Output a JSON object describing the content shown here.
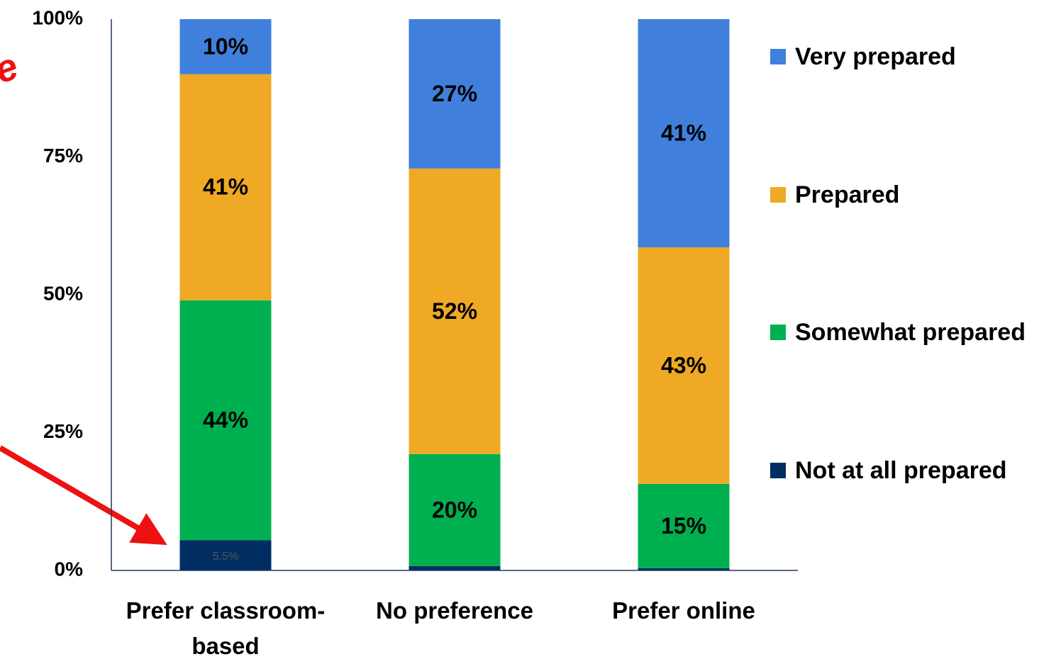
{
  "chart_data": {
    "type": "stacked_bar",
    "annotation": "e",
    "categories": [
      "Prefer classroom-based",
      "No preference",
      "Prefer online"
    ],
    "series": [
      {
        "name": "Not at all prepared",
        "color": "#002e63",
        "values": [
          5.5,
          0.8,
          0.4
        ],
        "value_labels": [
          "5.5%",
          null,
          null
        ]
      },
      {
        "name": "Somewhat prepared",
        "color": "#00b050",
        "values": [
          43.5,
          20.3,
          15.3
        ],
        "value_labels": [
          "44%",
          "20%",
          "15%"
        ]
      },
      {
        "name": "Prepared",
        "color": "#efa924",
        "values": [
          41,
          51.8,
          42.9
        ],
        "value_labels": [
          "41%",
          "52%",
          "43%"
        ]
      },
      {
        "name": "Very prepared",
        "color": "#4080dc",
        "values": [
          10,
          27.1,
          41.4
        ],
        "value_labels": [
          "10%",
          "27%",
          "41%"
        ]
      }
    ],
    "ylim": [
      0,
      100
    ],
    "yticks": [
      {
        "value": 0,
        "label": "0%"
      },
      {
        "value": 25,
        "label": "25%"
      },
      {
        "value": 50,
        "label": "50%"
      },
      {
        "value": 75,
        "label": "75%"
      },
      {
        "value": 100,
        "label": "100%"
      }
    ],
    "legend": "right"
  }
}
